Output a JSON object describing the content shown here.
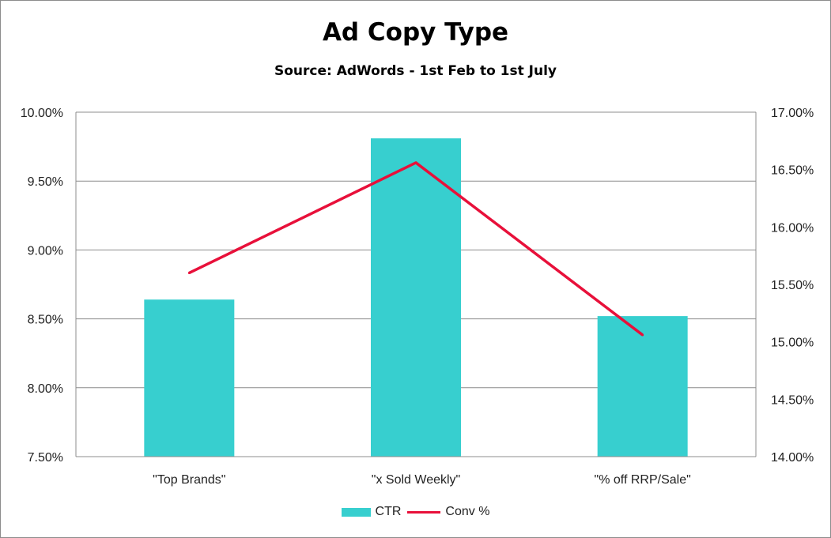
{
  "chart_data": {
    "type": "bar",
    "title": "Ad Copy Type",
    "subtitle": "Source: AdWords - 1st Feb to 1st July",
    "categories": [
      "\"Top Brands\"",
      "\"x Sold Weekly\"",
      "\"% off RRP/Sale\""
    ],
    "series": [
      {
        "name": "CTR",
        "type": "bar",
        "axis": "left",
        "values": [
          8.64,
          9.81,
          8.52
        ],
        "color": "#37CFCF"
      },
      {
        "name": "Conv %",
        "type": "line",
        "axis": "right",
        "values": [
          15.6,
          16.56,
          15.06
        ],
        "color": "#E8103A"
      }
    ],
    "y_left": {
      "min": 7.5,
      "max": 10.0,
      "step": 0.5,
      "tick_labels": [
        "7.50%",
        "8.00%",
        "8.50%",
        "9.00%",
        "9.50%",
        "10.00%"
      ]
    },
    "y_right": {
      "min": 14.0,
      "max": 17.0,
      "step": 0.5,
      "tick_labels": [
        "14.00%",
        "14.50%",
        "15.00%",
        "15.50%",
        "16.00%",
        "16.50%",
        "17.00%"
      ]
    },
    "grid": true,
    "legend_position": "bottom"
  }
}
